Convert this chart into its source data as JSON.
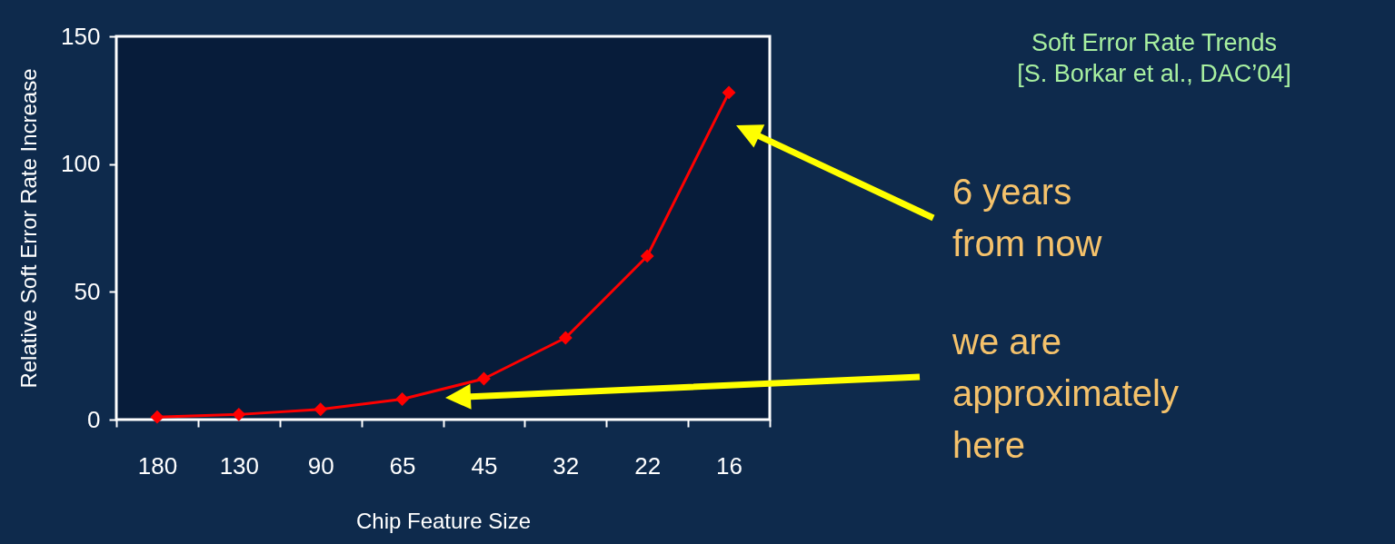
{
  "chart_data": {
    "type": "line",
    "title": "Soft Error Rate Trends",
    "subtitle": "[S. Borkar et al., DAC’04]",
    "xlabel": "Chip Feature Size",
    "ylabel": "Relative Soft Error Rate Increase",
    "categories": [
      "180",
      "130",
      "90",
      "65",
      "45",
      "32",
      "22",
      "16"
    ],
    "series": [
      {
        "color": "#ff0000",
        "values": [
          1,
          2,
          4,
          8,
          16,
          32,
          64,
          128
        ]
      }
    ],
    "ylim": [
      0,
      150
    ],
    "yticks": [
      0,
      50,
      100,
      150
    ],
    "grid": false,
    "marker": "diamond",
    "line_style": "solid",
    "annotations": [
      "6 years\nfrom now",
      "we are\napproximately\nhere"
    ]
  }
}
